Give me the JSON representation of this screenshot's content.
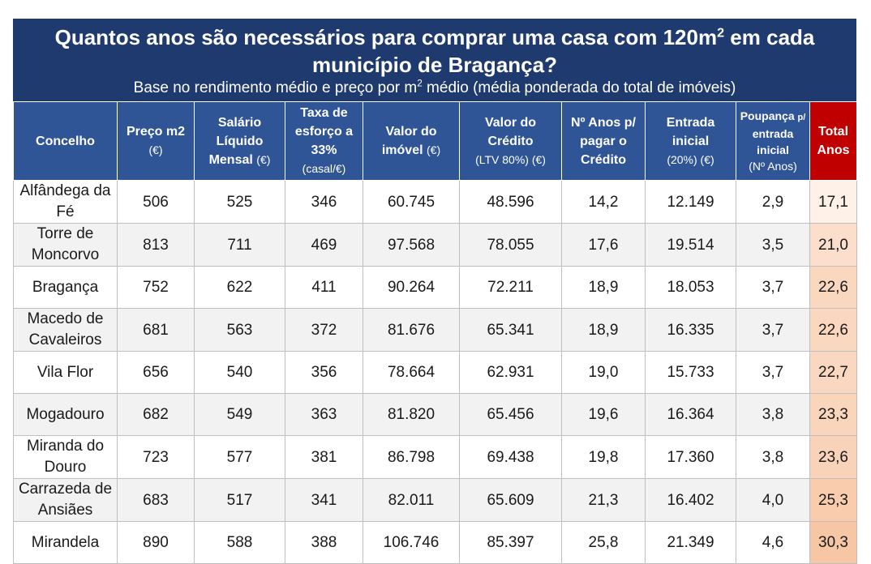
{
  "title_line1": "Quantos anos são necessários para comprar uma casa com 120m",
  "title_sup": "2",
  "title_line1_end": " em cada",
  "title_line2": "município de Bragança?",
  "subtitle_start": "Base no rendimento médio e preço por m",
  "subtitle_sup": "2",
  "subtitle_end": " médio (média ponderada do total de imóveis)",
  "columns": {
    "c0": "Concelho",
    "c1": "Preço m2",
    "c1_unit": "(€)",
    "c2": "Salário Líquido Mensal",
    "c2_unit": "(€)",
    "c3": "Taxa de esforço a 33%",
    "c3_unit": "(casal/€)",
    "c4": "Valor do imóvel",
    "c4_unit": "(€)",
    "c5": "Valor do Crédito",
    "c5_unit": "(LTV 80%) (€)",
    "c6": "Nº Anos p/ pagar o Crédito",
    "c7": "Entrada inicial",
    "c7_unit": "(20%) (€)",
    "c8_a": "Poupança",
    "c8_p": "p/",
    "c8_b": "entrada inicial",
    "c8_unit": "(Nº Anos)",
    "c9": "Total Anos"
  },
  "chart_data": {
    "type": "table",
    "rows": [
      {
        "concelho": "Alfândega da Fé",
        "preco_m2": "506",
        "salario": "525",
        "taxa": "346",
        "valor_imovel": "60.745",
        "valor_credito": "48.596",
        "anos_credito": "14,2",
        "entrada": "12.149",
        "poupanca": "2,9",
        "total": "17,1"
      },
      {
        "concelho": "Torre de Moncorvo",
        "preco_m2": "813",
        "salario": "711",
        "taxa": "469",
        "valor_imovel": "97.568",
        "valor_credito": "78.055",
        "anos_credito": "17,6",
        "entrada": "19.514",
        "poupanca": "3,5",
        "total": "21,0"
      },
      {
        "concelho": "Bragança",
        "preco_m2": "752",
        "salario": "622",
        "taxa": "411",
        "valor_imovel": "90.264",
        "valor_credito": "72.211",
        "anos_credito": "18,9",
        "entrada": "18.053",
        "poupanca": "3,7",
        "total": "22,6"
      },
      {
        "concelho": "Macedo de Cavaleiros",
        "preco_m2": "681",
        "salario": "563",
        "taxa": "372",
        "valor_imovel": "81.676",
        "valor_credito": "65.341",
        "anos_credito": "18,9",
        "entrada": "16.335",
        "poupanca": "3,7",
        "total": "22,6"
      },
      {
        "concelho": "Vila Flor",
        "preco_m2": "656",
        "salario": "540",
        "taxa": "356",
        "valor_imovel": "78.664",
        "valor_credito": "62.931",
        "anos_credito": "19,0",
        "entrada": "15.733",
        "poupanca": "3,7",
        "total": "22,7"
      },
      {
        "concelho": "Mogadouro",
        "preco_m2": "682",
        "salario": "549",
        "taxa": "363",
        "valor_imovel": "81.820",
        "valor_credito": "65.456",
        "anos_credito": "19,6",
        "entrada": "16.364",
        "poupanca": "3,8",
        "total": "23,3"
      },
      {
        "concelho": "Miranda do Douro",
        "preco_m2": "723",
        "salario": "577",
        "taxa": "381",
        "valor_imovel": "86.798",
        "valor_credito": "69.438",
        "anos_credito": "19,8",
        "entrada": "17.360",
        "poupanca": "3,8",
        "total": "23,6"
      },
      {
        "concelho": "Carrazeda de Ansiães",
        "preco_m2": "683",
        "salario": "517",
        "taxa": "341",
        "valor_imovel": "82.011",
        "valor_credito": "65.609",
        "anos_credito": "21,3",
        "entrada": "16.402",
        "poupanca": "4,0",
        "total": "25,3"
      },
      {
        "concelho": "Mirandela",
        "preco_m2": "890",
        "salario": "588",
        "taxa": "388",
        "valor_imovel": "106.746",
        "valor_credito": "85.397",
        "anos_credito": "25,8",
        "entrada": "21.349",
        "poupanca": "4,6",
        "total": "30,3"
      }
    ]
  },
  "colors": {
    "title_bg": "#1f3a6e",
    "header_bg": "#2f5597",
    "total_header_bg": "#c00000",
    "total_low": "#fdf1e8",
    "total_high": "#f7c6a4"
  }
}
